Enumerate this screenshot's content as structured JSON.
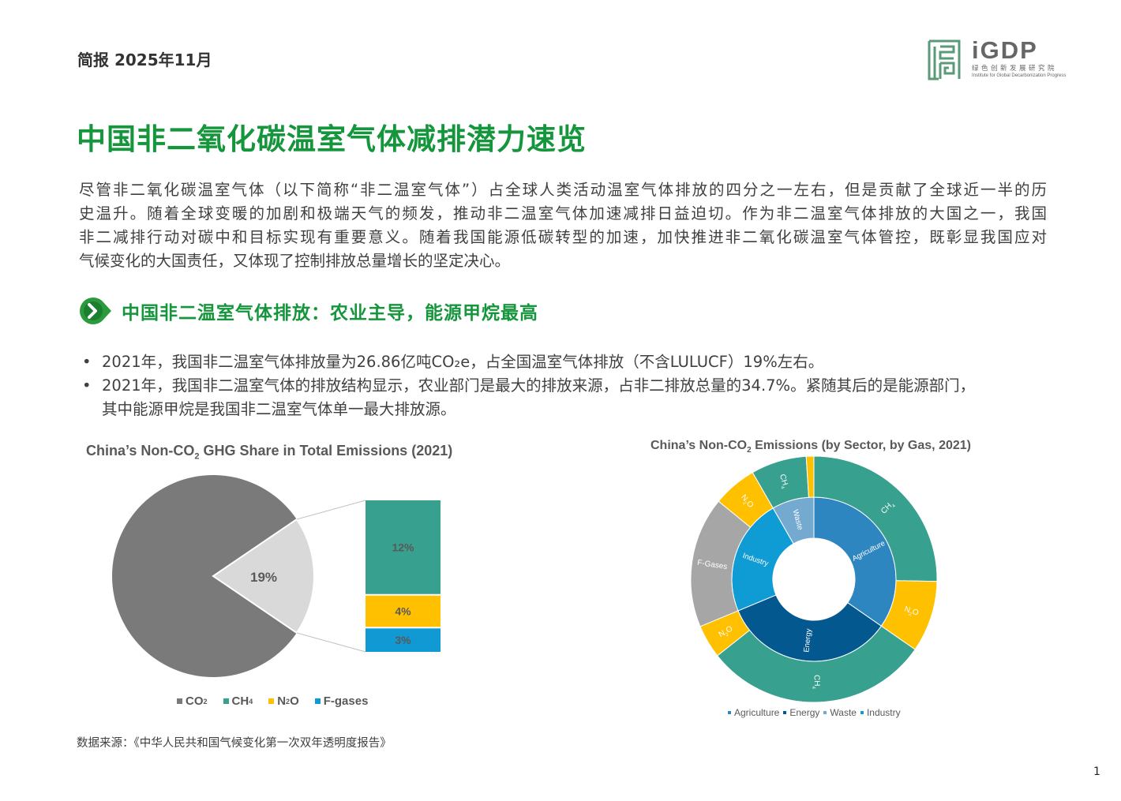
{
  "header": {
    "label": "简报 2025年11月"
  },
  "logo": {
    "main": "iGDP",
    "cn": "绿色创新发展研究院",
    "en": "Institute for Global Decarbonization Progress",
    "color": "#5a9a78"
  },
  "title": "中国非二氧化碳温室气体减排潜力速览",
  "intro_lines": [
    "尽管非二氧化碳温室气体（以下简称“非二温室气体”）占全球人类活动温室气体排放的四分之一左右，但是贡献了全球近一半的历",
    "史温升。随着全球变暖的加剧和极端天气的频发，推动非二温室气体加速减排日益迫切。作为非二温室气体排放的大国之一，我国",
    "非二减排行动对碳中和目标实现有重要意义。随着我国能源低碳转型的加速，加快推进非二氧化碳温室气体管控，既彰显我国应对",
    "气候变化的大国责任，又体现了控制排放总量增长的坚定决心。"
  ],
  "section": {
    "icon": "chevron-right-circle",
    "title": "中国非二温室气体排放：农业主导，能源甲烷最高"
  },
  "bullets": [
    {
      "lines": [
        "2021年，我国非二温室气体排放量为26.86亿吨CO₂e，占全国温室气体排放（不含LULUCF）19%左右。"
      ]
    },
    {
      "lines": [
        "2021年，我国非二温室气体的排放结构显示，农业部门是最大的排放来源，占非二排放总量的34.7%。紧随其后的是能源部门，",
        "其中能源甲烷是我国非二温室气体单一最大排放源。"
      ]
    }
  ],
  "chart_data": [
    {
      "type": "pie",
      "title_parts": [
        "China’s Non-CO",
        "2",
        " GHG Share in Total Emissions (2021)"
      ],
      "slices": [
        {
          "name": "CO₂",
          "value": 81,
          "color": "#7a7a7a"
        },
        {
          "name": "Non-CO₂",
          "value": 19,
          "label": "19%",
          "color": "#d9d9d9"
        }
      ],
      "breakdown": {
        "type": "stacked-bar",
        "items": [
          {
            "name": "CH₄",
            "value": 12,
            "label": "12%",
            "color": "#37a08e"
          },
          {
            "name": "N₂O",
            "value": 4,
            "label": "4%",
            "color": "#ffc000"
          },
          {
            "name": "F-gases",
            "value": 3,
            "label": "3%",
            "color": "#1199d3"
          }
        ]
      },
      "legend": [
        {
          "base": "CO",
          "sub": "2",
          "color": "#7a7a7a"
        },
        {
          "base": "CH",
          "sub": "4",
          "color": "#37a08e"
        },
        {
          "base": "N",
          "sub": "2",
          "tail": "O",
          "color": "#ffc000"
        },
        {
          "base": "F-gases",
          "sub": "",
          "color": "#1199d3"
        }
      ],
      "legend_position": "bottom"
    },
    {
      "type": "sunburst",
      "title_parts": [
        "China’s Non-CO",
        "2",
        " Emissions (by Sector, by Gas, 2021)"
      ],
      "sectors": [
        {
          "name": "Agriculture",
          "color": "#2e86c1",
          "gases": [
            {
              "name": "CH4",
              "label_base": "CH",
              "label_sub": "4",
              "value": 25.3,
              "color": "#37a08e"
            },
            {
              "name": "N2O",
              "label_base": "N",
              "label_sub": "2",
              "label_tail": "O",
              "value": 9.4,
              "color": "#ffc000"
            }
          ]
        },
        {
          "name": "Energy",
          "color": "#03588f",
          "gases": [
            {
              "name": "CH4",
              "label_base": "CH",
              "label_sub": "4",
              "value": 29.7,
              "color": "#37a08e"
            },
            {
              "name": "N2O",
              "label_base": "N",
              "label_sub": "2",
              "label_tail": "O",
              "value": 4.4,
              "color": "#ffc000"
            }
          ]
        },
        {
          "name": "Industry",
          "color": "#0f9bd4",
          "gases": [
            {
              "name": "F-Gases",
              "label_base": "F-Gases",
              "label_sub": "",
              "value": 17.2,
              "color": "#a6a6a6"
            },
            {
              "name": "N2O",
              "label_base": "N",
              "label_sub": "2",
              "label_tail": "O",
              "value": 5.8,
              "color": "#ffc000"
            }
          ]
        },
        {
          "name": "Waste",
          "color": "#74a9d0",
          "gases": [
            {
              "name": "CH4",
              "label_base": "CH",
              "label_sub": "4",
              "value": 7.3,
              "color": "#37a08e"
            },
            {
              "name": "N2O",
              "label_base": "",
              "label_sub": "",
              "value": 1.0,
              "color": "#ffc000"
            }
          ]
        }
      ],
      "legend": [
        "Agriculture",
        "Energy",
        "Waste",
        "Industry"
      ],
      "legend_position": "bottom"
    }
  ],
  "source": "数据来源：《中华人民共和国气候变化第一次双年透明度报告》",
  "page_number": "1"
}
